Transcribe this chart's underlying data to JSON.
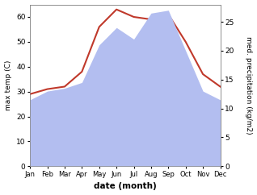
{
  "months": [
    "Jan",
    "Feb",
    "Mar",
    "Apr",
    "May",
    "Jun",
    "Jul",
    "Aug",
    "Sep",
    "Oct",
    "Nov",
    "Dec"
  ],
  "temperature": [
    29,
    31,
    32,
    38,
    56,
    63,
    60,
    59,
    61,
    50,
    37,
    32
  ],
  "precipitation": [
    11.5,
    13,
    13.5,
    14.5,
    21,
    24,
    22,
    26.5,
    27,
    20,
    13,
    11.5
  ],
  "temp_color": "#c0392b",
  "precip_fill_color": "#b3bef0",
  "left_ylim": [
    0,
    65
  ],
  "right_ylim": [
    0,
    28
  ],
  "left_yticks": [
    0,
    10,
    20,
    30,
    40,
    50,
    60
  ],
  "right_yticks": [
    0,
    5,
    10,
    15,
    20,
    25
  ],
  "ylabel_left": "max temp (C)",
  "ylabel_right": "med. precipitation (kg/m2)",
  "xlabel": "date (month)",
  "bg_color": "#ffffff"
}
